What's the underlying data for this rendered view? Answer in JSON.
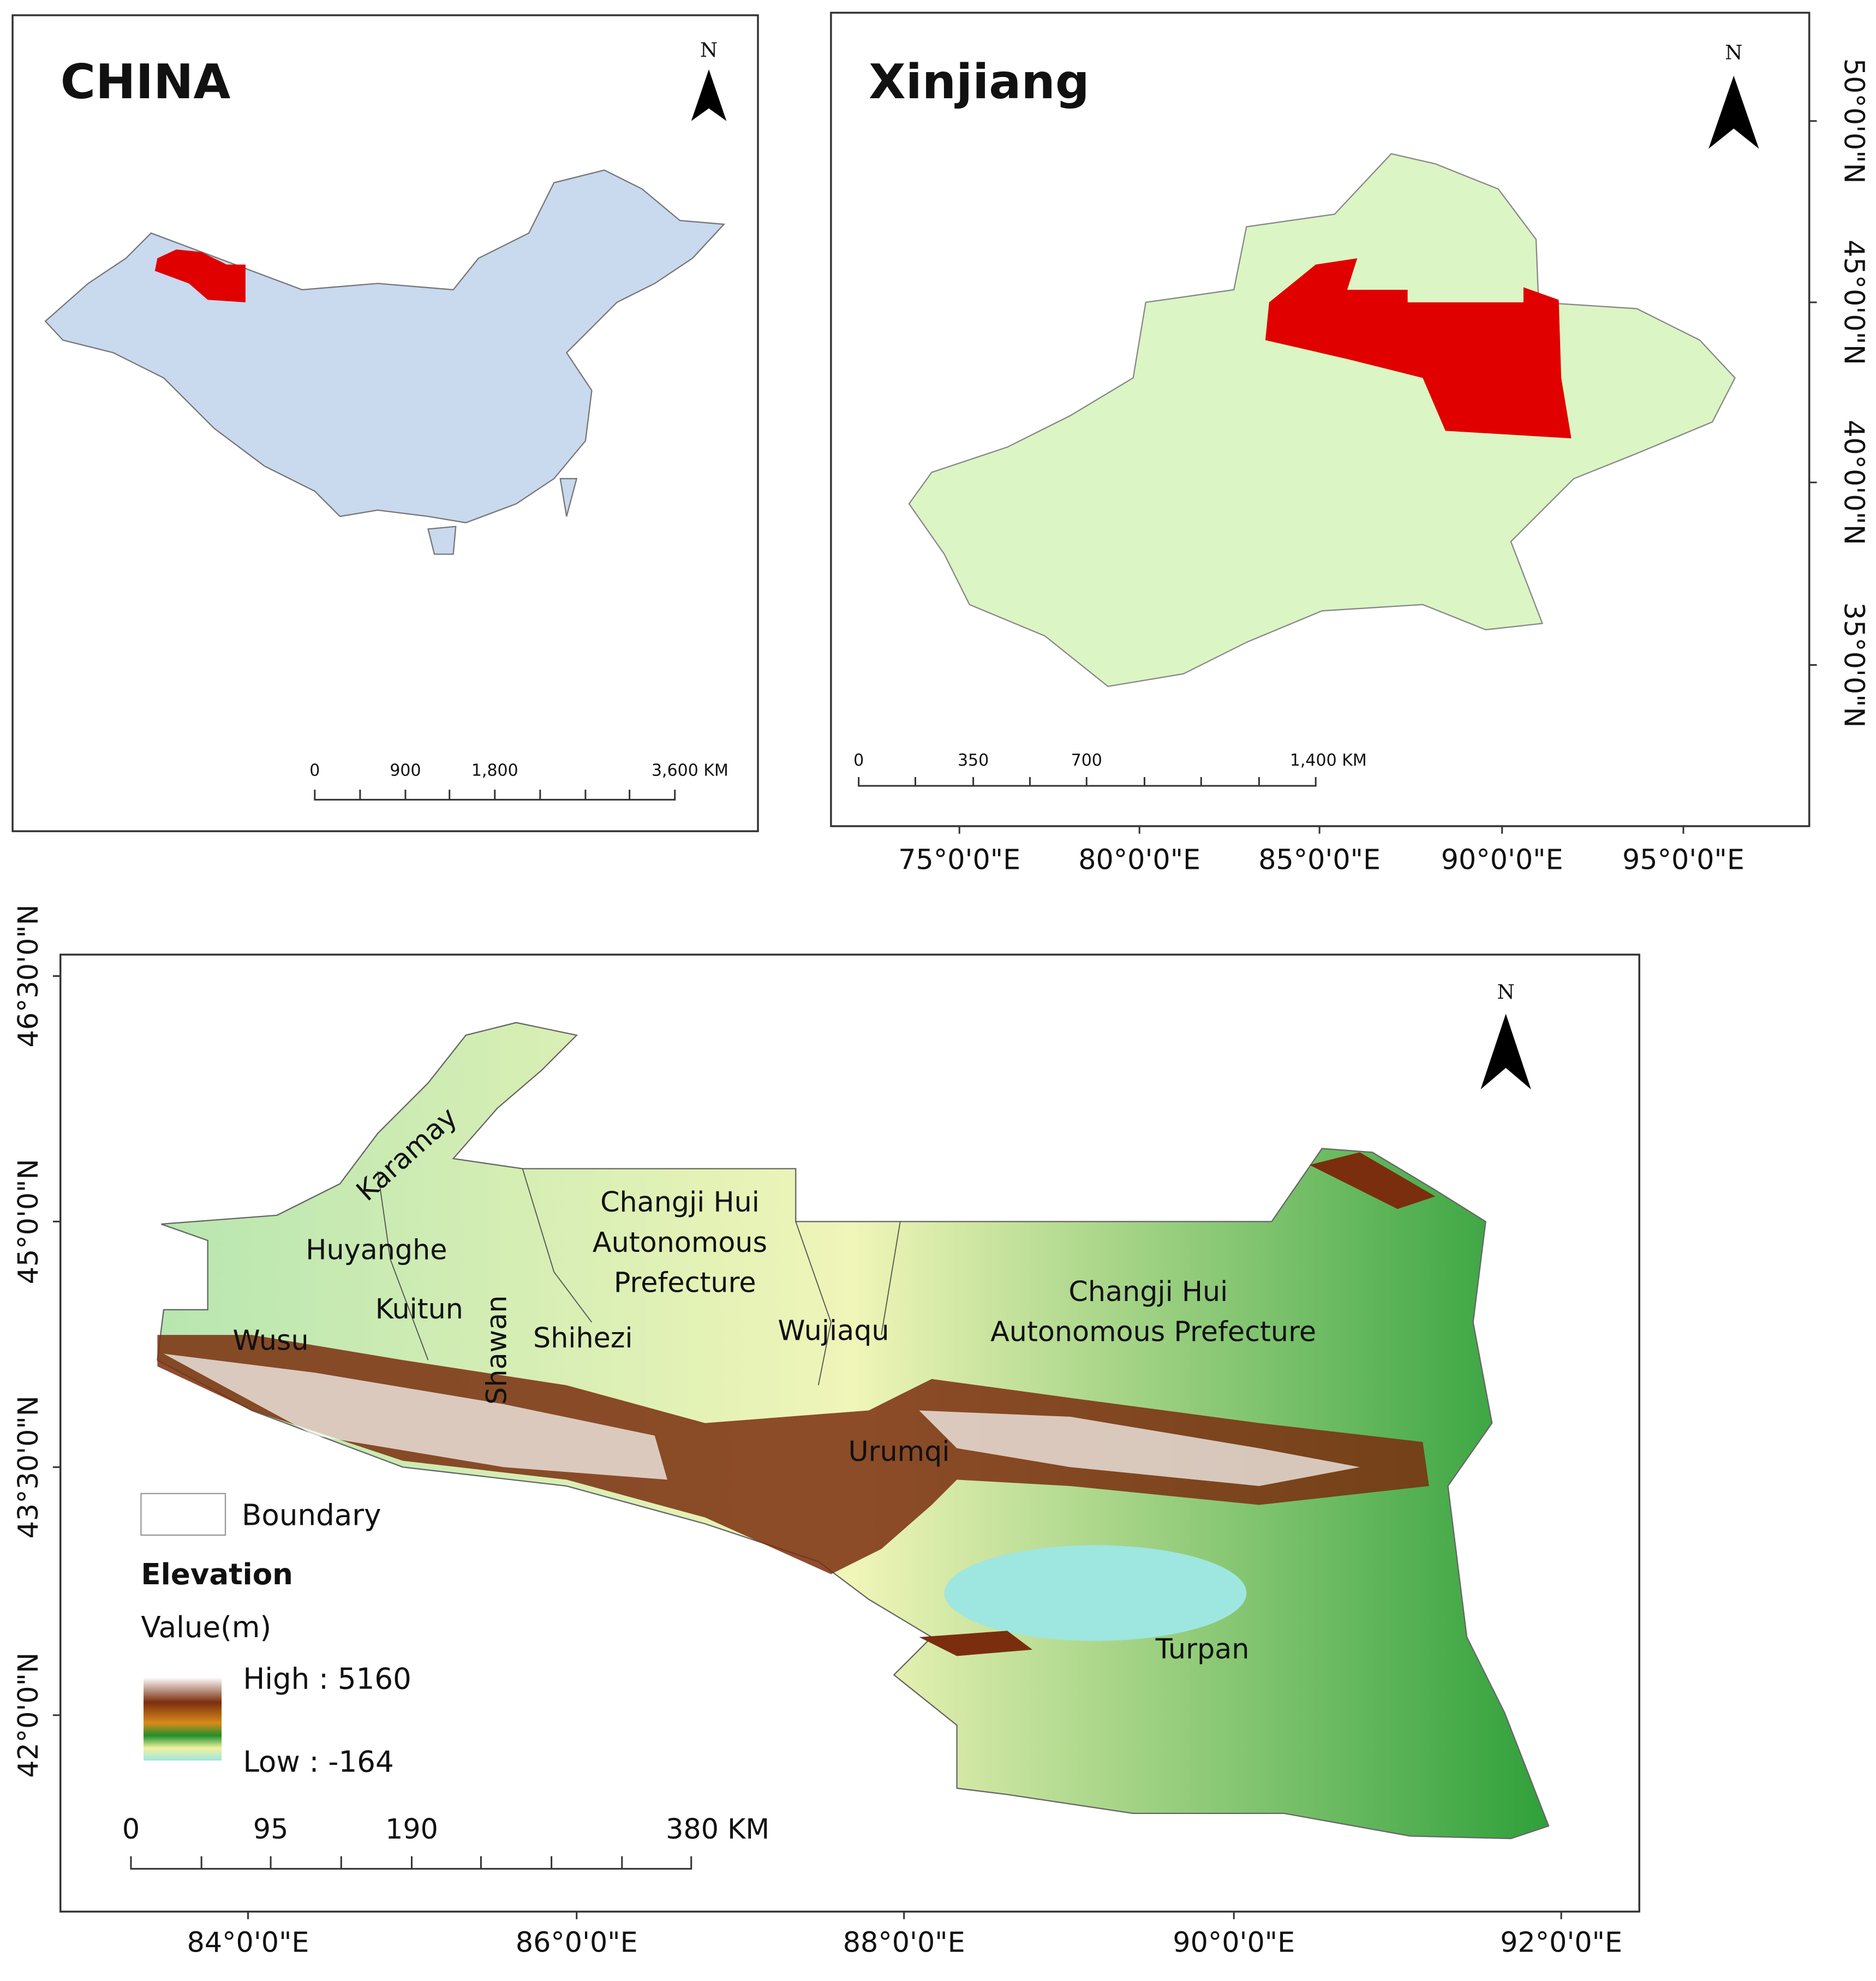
{
  "panels": [
    {
      "title": "CHINA",
      "north": "N",
      "scale_labels": [
        "0",
        "900",
        "1,800",
        "3,600 KM"
      ]
    },
    {
      "title": "Xinjiang",
      "north": "N",
      "scale_labels": [
        "0",
        "350",
        "700",
        "1,400 KM"
      ],
      "lat_labels": [
        "50°0'0\"N",
        "45°0'0\"N",
        "40°0'0\"N",
        "35°0'0\"N"
      ],
      "lon_labels": [
        "75°0'0\"E",
        "80°0'0\"E",
        "85°0'0\"E",
        "90°0'0\"E",
        "95°0'0\"E"
      ]
    },
    {
      "north": "N",
      "places": [
        "Karamay",
        "Huyanghe",
        "Kuitun",
        "Wusu",
        "Shawan",
        "Shihezi",
        "Changji Hui",
        "Autonomous",
        "Prefecture",
        "Wujiaqu",
        "Changji Hui",
        "Autonomous Prefecture",
        "Urumqi",
        "Turpan"
      ],
      "legend": {
        "boundary": "Boundary",
        "title": "Elevation",
        "unit": "Value(m)",
        "high": "High : 5160",
        "low": "Low : -164"
      },
      "scale_labels": [
        "0",
        "95",
        "190",
        "380 KM"
      ],
      "lat_labels": [
        "46°30'0\"N",
        "45°0'0\"N",
        "43°30'0\"N",
        "42°0'0\"N"
      ],
      "lon_labels": [
        "84°0'0\"E",
        "86°0'0\"E",
        "88°0'0\"E",
        "90°0'0\"E",
        "92°0'0\"E"
      ]
    }
  ]
}
